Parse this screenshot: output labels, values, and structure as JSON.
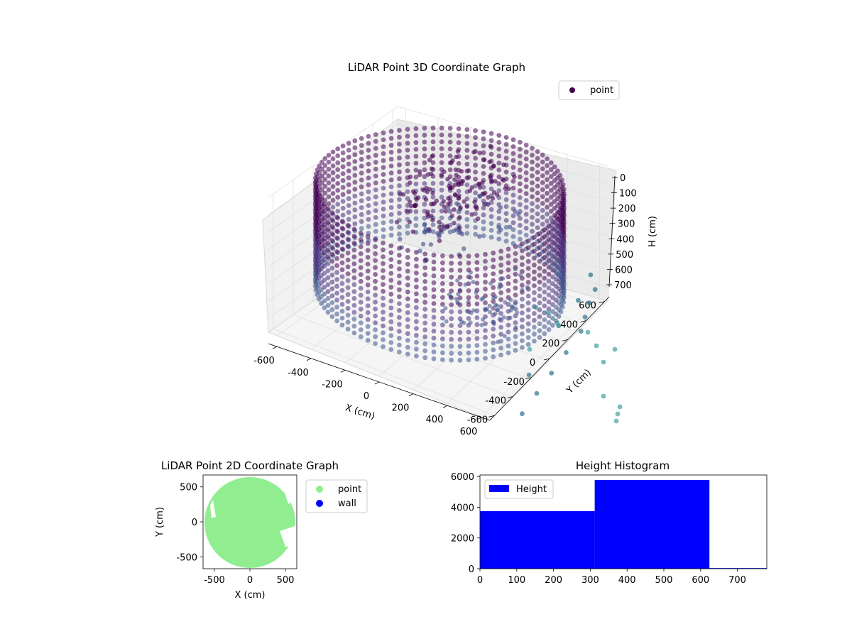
{
  "chart_data": [
    {
      "type": "scatter",
      "projection": "3d",
      "title": "LiDAR Point 3D Coordinate Graph",
      "xlabel": "X (cm)",
      "ylabel": "Y (cm)",
      "zlabel": "H (cm)",
      "xticks": [
        "-600",
        "-400",
        "-200",
        "0",
        "200",
        "400",
        "600"
      ],
      "yticks": [
        "-600",
        "-400",
        "-200",
        "0",
        "200",
        "400",
        "600"
      ],
      "zticks": [
        "0",
        "100",
        "200",
        "300",
        "400",
        "500",
        "600",
        "700"
      ],
      "xlim": [
        -650,
        650
      ],
      "ylim": [
        -650,
        650
      ],
      "zlim": [
        0,
        780
      ],
      "z_inverted": true,
      "legend": {
        "position": "top-right",
        "entries": [
          "point"
        ]
      },
      "series": [
        {
          "name": "point",
          "color": "#440154",
          "colormap": "viridis",
          "description_of_values": "ring of points of radius ~650 cm spanning H 0-600, plus scattered interior and outlier points",
          "ring_radius": 650,
          "ring_h_range": [
            0,
            600
          ],
          "outliers": [
            {
              "x": 550,
              "y": 640,
              "h": 650
            },
            {
              "x": 600,
              "y": 600,
              "h": 700
            },
            {
              "x": 620,
              "y": 500,
              "h": 720
            },
            {
              "x": 650,
              "y": 400,
              "h": 740
            },
            {
              "x": 680,
              "y": 300,
              "h": 760
            },
            {
              "x": 700,
              "y": 100,
              "h": 770
            },
            {
              "x": 720,
              "y": -100,
              "h": 775
            },
            {
              "x": 740,
              "y": -300,
              "h": 778
            },
            {
              "x": 760,
              "y": -500,
              "h": 780
            },
            {
              "x": 600,
              "y": 200,
              "h": 700
            },
            {
              "x": 580,
              "y": 450,
              "h": 690
            },
            {
              "x": 640,
              "y": -200,
              "h": 760
            }
          ]
        }
      ]
    },
    {
      "type": "scatter",
      "title": "LiDAR Point 2D Coordinate Graph",
      "xlabel": "X (cm)",
      "ylabel": "Y (cm)",
      "xticks": [
        "-500",
        "0",
        "500"
      ],
      "yticks": [
        "-500",
        "0",
        "500"
      ],
      "xlim": [
        -660,
        660
      ],
      "ylim": [
        -670,
        670
      ],
      "legend": {
        "position": "outside-right",
        "entries": [
          "point",
          "wall"
        ]
      },
      "series": [
        {
          "name": "point",
          "color": "#90ee90",
          "shape": "filled disc of radius ~650 cm centred near (0,-10)"
        },
        {
          "name": "wall",
          "color": "#0000ff",
          "values": []
        }
      ]
    },
    {
      "type": "bar",
      "subtype": "histogram",
      "title": "Height Histogram",
      "xticks": [
        "0",
        "100",
        "200",
        "300",
        "400",
        "500",
        "600",
        "700"
      ],
      "yticks": [
        "0",
        "2000",
        "4000",
        "6000"
      ],
      "xlim": [
        0,
        780
      ],
      "ylim": [
        0,
        6100
      ],
      "bins": [
        {
          "x0": 0,
          "x1": 312,
          "value": 3750
        },
        {
          "x0": 312,
          "x1": 624,
          "value": 5780
        },
        {
          "x0": 624,
          "x1": 780,
          "value": 40
        }
      ],
      "legend": {
        "position": "top-left",
        "entries": [
          "Height"
        ]
      },
      "series": [
        {
          "name": "Height",
          "color": "#0000ff"
        }
      ]
    }
  ]
}
